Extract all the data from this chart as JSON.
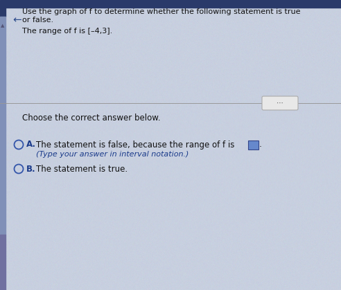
{
  "title_line1": "Use the graph of f to determine whether the following statement is true",
  "title_line2": "or false.",
  "statement": "The range of f is [–4,3].",
  "choose_label": "Choose the correct answer below.",
  "option_a_label": "A.",
  "option_a_text1": "The statement is false, because the range of f is",
  "option_a_text2": "(Type your answer in interval notation.)",
  "option_b_label": "B.",
  "option_b_text": "The statement is true.",
  "bg_color": "#c8d0e0",
  "left_bar_color_top": "#3a5080",
  "left_bar_color_mid": "#8090b8",
  "left_bar_color_bot": "#7878a8",
  "text_color": "#111111",
  "blue_label_color": "#1a3a8a",
  "italic_text_color": "#1a3a8a",
  "divider_color": "#999999",
  "dots_button_bg": "#e8e8e8",
  "dots_button_border": "#aaaaaa",
  "answer_box_color": "#6688cc",
  "circle_color": "#3355aa"
}
